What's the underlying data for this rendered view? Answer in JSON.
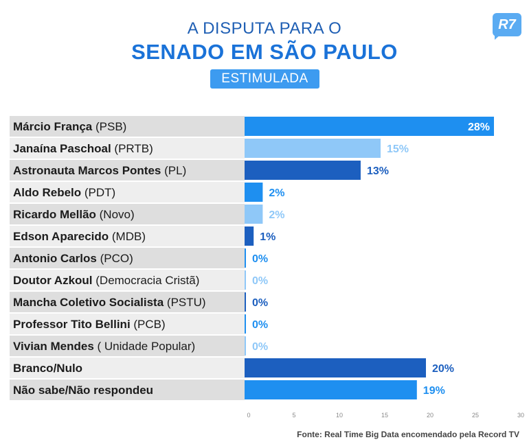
{
  "header": {
    "title_line1": "A DISPUTA PARA O",
    "title_line2": "SENADO EM SÃO PAULO",
    "badge": "ESTIMULADA",
    "logo": "R7"
  },
  "source": "Fonte: Real Time Big Data encomendado pela Record TV",
  "colors": {
    "bright_blue": "#1e8ff0",
    "light_blue": "#8fc8f8",
    "dark_blue": "#1c5fbf",
    "row_light": "#eeeeee",
    "row_dark": "#dedede"
  },
  "chart_data": {
    "type": "bar",
    "orientation": "horizontal",
    "xlim": [
      0,
      30
    ],
    "xticks": [
      0,
      5,
      10,
      15,
      20,
      25,
      30
    ],
    "categories": [
      {
        "name": "Márcio França",
        "party": "(PSB)"
      },
      {
        "name": "Janaína Paschoal",
        "party": "(PRTB)"
      },
      {
        "name": "Astronauta Marcos Pontes",
        "party": "(PL)"
      },
      {
        "name": "Aldo Rebelo",
        "party": "(PDT)"
      },
      {
        "name": "Ricardo Mellão",
        "party": "(Novo)"
      },
      {
        "name": "Edson Aparecido",
        "party": "(MDB)"
      },
      {
        "name": "Antonio Carlos",
        "party": "(PCO)"
      },
      {
        "name": "Doutor Azkoul",
        "party": "(Democracia Cristã)"
      },
      {
        "name": "Mancha Coletivo Socialista",
        "party": "(PSTU)"
      },
      {
        "name": "Professor Tito Bellini",
        "party": "(PCB)"
      },
      {
        "name": "Vivian Mendes",
        "party": "( Unidade Popular)"
      },
      {
        "name": "Branco/Nulo",
        "party": ""
      },
      {
        "name": "Não sabe/Não respondeu",
        "party": ""
      }
    ],
    "values": [
      27.5,
      15,
      12.8,
      2,
      2,
      1,
      0,
      0,
      0,
      0,
      0,
      20,
      19
    ],
    "labels": [
      "28%",
      "15%",
      "13%",
      "2%",
      "2%",
      "1%",
      "0%",
      "0%",
      "0%",
      "0%",
      "0%",
      "20%",
      "19%"
    ],
    "bar_colors": [
      "#1e8ff0",
      "#8fc8f8",
      "#1c5fbf",
      "#1e8ff0",
      "#8fc8f8",
      "#1c5fbf",
      "#1e8ff0",
      "#8fc8f8",
      "#1c5fbf",
      "#1e8ff0",
      "#8fc8f8",
      "#1c5fbf",
      "#1e8ff0"
    ],
    "grid": false
  }
}
